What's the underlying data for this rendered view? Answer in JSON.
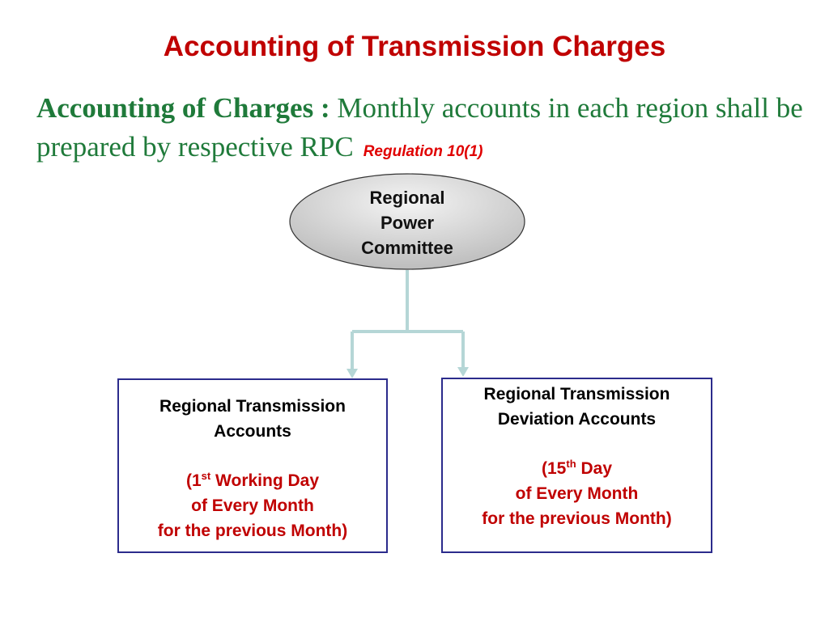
{
  "title": "Accounting of Transmission Charges",
  "lead": {
    "bold": "Accounting of  Charges :",
    "text": " Monthly accounts in each region shall be prepared by respective RPC",
    "regulation": "Regulation 10(1)"
  },
  "diagram": {
    "root": {
      "lines": [
        "Regional",
        "Power",
        "Committee"
      ]
    },
    "left": {
      "heading": [
        "Regional Transmission",
        "Accounts"
      ],
      "open": "(1",
      "sup": "st",
      "rest": " Working Day",
      "lines": [
        "of Every Month",
        "for the previous Month)"
      ]
    },
    "right": {
      "heading": [
        "Regional Transmission",
        "Deviation Accounts"
      ],
      "open": "(15",
      "sup": "th",
      "rest": " Day",
      "lines": [
        "of Every Month",
        "for the previous Month)"
      ]
    },
    "colors": {
      "title": "#c00000",
      "lead": "#1f7a3a",
      "connector": "#b5d6d6",
      "box_border": "#2b2b8c"
    }
  }
}
